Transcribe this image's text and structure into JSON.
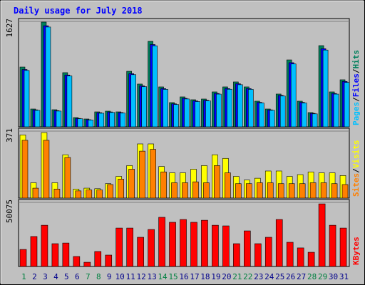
{
  "chart_data": {
    "type": "bar",
    "title": "Daily usage for July 2018",
    "categories": [
      "1",
      "2",
      "3",
      "4",
      "5",
      "6",
      "7",
      "8",
      "9",
      "10",
      "11",
      "12",
      "13",
      "14",
      "15",
      "16",
      "17",
      "18",
      "19",
      "20",
      "21",
      "22",
      "23",
      "24",
      "25",
      "26",
      "27",
      "28",
      "29",
      "30",
      "31"
    ],
    "x_label_colors": [
      "#008040",
      "#00008b",
      "#00008b",
      "#00008b",
      "#00008b",
      "#00008b",
      "#008040",
      "#008040",
      "#00008b",
      "#00008b",
      "#00008b",
      "#00008b",
      "#00008b",
      "#008040",
      "#008040",
      "#00008b",
      "#00008b",
      "#00008b",
      "#00008b",
      "#00008b",
      "#008040",
      "#008040",
      "#00008b",
      "#00008b",
      "#00008b",
      "#00008b",
      "#00008b",
      "#008040",
      "#008040",
      "#00008b",
      "#00008b"
    ],
    "legend_separator": "/",
    "panels": [
      {
        "ylim": [
          0,
          1627
        ],
        "yticks": [
          1627
        ],
        "series": [
          {
            "name": "Pages",
            "color": "#00c0ff",
            "values": [
              870,
              255,
              1540,
              243,
              785,
              125,
              105,
              210,
              222,
              212,
              805,
              620,
              1250,
              578,
              345,
              430,
              390,
              400,
              505,
              580,
              650,
              578,
              368,
              255,
              475,
              970,
              368,
              200,
              1185,
              505,
              685
            ]
          },
          {
            "name": "Files",
            "color": "#0000ff",
            "values": [
              885,
              262,
              1560,
              250,
              800,
              130,
              110,
              218,
              230,
              220,
              820,
              632,
              1270,
              590,
              355,
              440,
              400,
              410,
              515,
              590,
              665,
              590,
              378,
              262,
              485,
              990,
              378,
              208,
              1205,
              515,
              700
            ]
          },
          {
            "name": "Hits",
            "color": "#00805c",
            "values": [
              923,
              275,
              1616,
              264,
              836,
              143,
              121,
              231,
              242,
              231,
              857,
              660,
              1319,
              616,
              374,
              462,
              418,
              429,
              539,
              616,
              693,
              616,
              396,
              275,
              506,
              1033,
              396,
              220,
              1253,
              539,
              726
            ]
          }
        ]
      },
      {
        "ylim": [
          0,
          371
        ],
        "yticks": [
          371
        ],
        "series": [
          {
            "name": "Sites",
            "color": "#ff8000",
            "values": [
              320,
              55,
              320,
              50,
              225,
              40,
              45,
              45,
              75,
              105,
              160,
              260,
              270,
              145,
              85,
              85,
              90,
              85,
              180,
              140,
              80,
              80,
              85,
              85,
              80,
              80,
              80,
              85,
              85,
              80,
              75
            ]
          },
          {
            "name": "Visits",
            "color": "#ffff00",
            "values": [
              350,
              85,
              363,
              85,
              240,
              50,
              55,
              52,
              80,
              120,
              180,
              300,
              300,
              175,
              140,
              140,
              160,
              180,
              240,
              220,
              120,
              100,
              110,
              150,
              150,
              120,
              130,
              145,
              140,
              140,
              125
            ]
          }
        ]
      },
      {
        "ylim": [
          0,
          50075
        ],
        "yticks": [
          50075
        ],
        "series": [
          {
            "name": "KBytes",
            "color": "#ff0000",
            "values": [
              13300,
              23400,
              32200,
              17800,
              18300,
              7800,
              3300,
              11700,
              8900,
              30000,
              30000,
              22800,
              28900,
              38400,
              34500,
              36700,
              34500,
              36100,
              32200,
              31700,
              17800,
              27800,
              17800,
              22800,
              36700,
              18900,
              14500,
              11100,
              48900,
              32200,
              30000
            ]
          }
        ]
      }
    ]
  }
}
